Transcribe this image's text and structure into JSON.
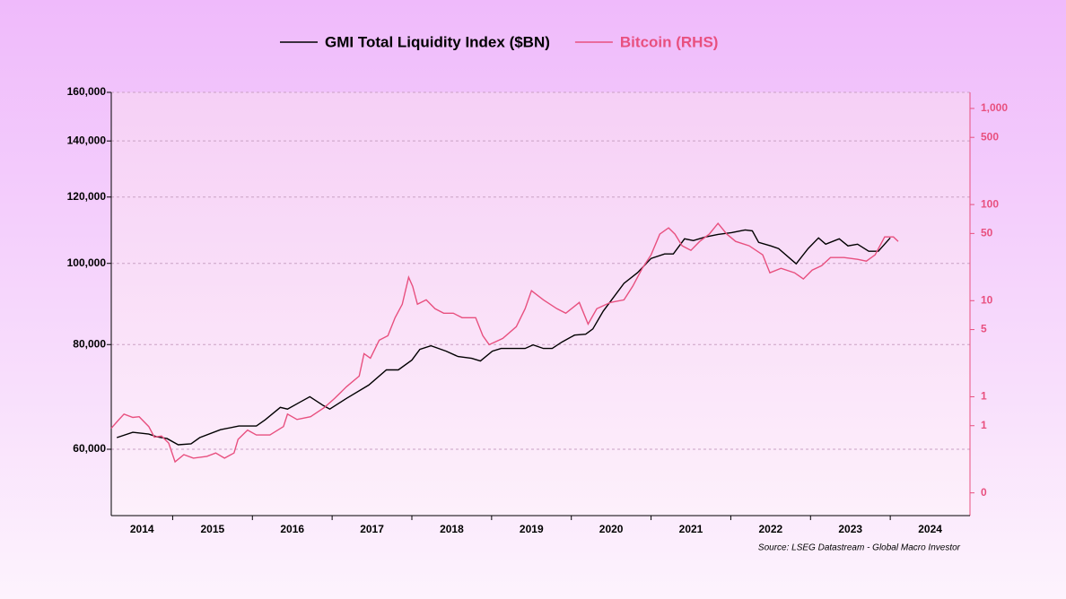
{
  "chart_data": {
    "type": "line",
    "source": "Source: LSEG Datastream - Global Macro Investor",
    "xlim": [
      2014.23,
      2025
    ],
    "xticks": [
      2014,
      2015,
      2016,
      2017,
      2018,
      2019,
      2020,
      2021,
      2022,
      2023,
      2024
    ],
    "ylim": [
      50000,
      160000
    ],
    "log_y": true,
    "yticks": [
      {
        "value": 60000,
        "label": "60,000"
      },
      {
        "value": 80000,
        "label": "80,000"
      },
      {
        "value": 100000,
        "label": "100,000"
      },
      {
        "value": 120000,
        "label": "120,000"
      },
      {
        "value": 140000,
        "label": "140,000"
      },
      {
        "value": 160000,
        "label": "160,000"
      }
    ],
    "y2lim": [
      0.058,
      1470
    ],
    "log_y2": true,
    "y2ticks": [
      {
        "value": 0.1,
        "label": "0"
      },
      {
        "value": 0.5,
        "label": "1"
      },
      1,
      5,
      10,
      50,
      100,
      500,
      {
        "value": 1000,
        "label": "1,000"
      }
    ],
    "grid": true,
    "legend": "top",
    "series": [
      {
        "name": "GMI Total Liquidity Index ($BN)",
        "color": "#000000",
        "x": [
          2014.3,
          2014.5,
          2014.7,
          2014.8,
          2014.93,
          2015.07,
          2015.23,
          2015.34,
          2015.6,
          2015.83,
          2016.05,
          2016.16,
          2016.35,
          2016.44,
          2016.6,
          2016.72,
          2016.89,
          2016.97,
          2017.18,
          2017.46,
          2017.68,
          2017.83,
          2018.0,
          2018.1,
          2018.24,
          2018.43,
          2018.58,
          2018.75,
          2018.86,
          2019.01,
          2019.12,
          2019.42,
          2019.52,
          2019.65,
          2019.76,
          2019.88,
          2020.04,
          2020.18,
          2020.27,
          2020.4,
          2020.66,
          2020.83,
          2021.0,
          2021.17,
          2021.28,
          2021.42,
          2021.53,
          2021.68,
          2021.84,
          2022.01,
          2022.18,
          2022.27,
          2022.35,
          2022.5,
          2022.6,
          2022.82,
          2022.97,
          2023.1,
          2023.19,
          2023.36,
          2023.47,
          2023.59,
          2023.73,
          2023.85,
          2024.0
        ],
        "values": [
          61950,
          62860,
          62550,
          62100,
          61790,
          60740,
          60890,
          61950,
          63320,
          63950,
          63950,
          65050,
          67320,
          67000,
          68320,
          69330,
          67660,
          67000,
          69000,
          71580,
          74620,
          74620,
          76660,
          78950,
          79730,
          78570,
          77420,
          77040,
          76470,
          78570,
          79150,
          79150,
          79930,
          79150,
          79150,
          80520,
          82110,
          82310,
          83530,
          87720,
          94660,
          97480,
          101370,
          102620,
          102620,
          106990,
          106460,
          107510,
          108300,
          108840,
          109640,
          109370,
          105950,
          104920,
          104150,
          99890,
          104150,
          107250,
          105430,
          106990,
          104920,
          105430,
          103390,
          103390,
          107250
        ]
      },
      {
        "name": "Bitcoin (RHS)",
        "color": "#e8507f",
        "axis": "y2",
        "x": [
          2014.23,
          2014.31,
          2014.39,
          2014.5,
          2014.58,
          2014.7,
          2014.77,
          2014.86,
          2014.95,
          2015.03,
          2015.14,
          2015.26,
          2015.43,
          2015.54,
          2015.65,
          2015.77,
          2015.82,
          2015.94,
          2016.05,
          2016.22,
          2016.39,
          2016.44,
          2016.56,
          2016.73,
          2016.9,
          2017.03,
          2017.18,
          2017.34,
          2017.4,
          2017.48,
          2017.59,
          2017.7,
          2017.79,
          2017.88,
          2017.96,
          2018.01,
          2018.07,
          2018.18,
          2018.29,
          2018.4,
          2018.52,
          2018.63,
          2018.8,
          2018.89,
          2018.97,
          2019.14,
          2019.31,
          2019.42,
          2019.5,
          2019.65,
          2019.82,
          2019.93,
          2020.1,
          2020.21,
          2020.32,
          2020.49,
          2020.66,
          2020.77,
          2020.89,
          2021.0,
          2021.11,
          2021.22,
          2021.3,
          2021.39,
          2021.5,
          2021.61,
          2021.73,
          2021.84,
          2021.95,
          2022.06,
          2022.23,
          2022.4,
          2022.49,
          2022.63,
          2022.8,
          2022.91,
          2023.02,
          2023.14,
          2023.25,
          2023.42,
          2023.59,
          2023.7,
          2023.81,
          2023.93,
          2024.04,
          2024.1
        ],
        "values": [
          0.47,
          0.56,
          0.66,
          0.61,
          0.62,
          0.49,
          0.38,
          0.39,
          0.33,
          0.21,
          0.25,
          0.23,
          0.24,
          0.26,
          0.23,
          0.26,
          0.36,
          0.45,
          0.4,
          0.4,
          0.49,
          0.66,
          0.58,
          0.62,
          0.77,
          0.96,
          1.27,
          1.64,
          2.81,
          2.52,
          3.88,
          4.32,
          6.64,
          9.18,
          17.5,
          14.1,
          9.18,
          10.2,
          8.24,
          7.4,
          7.4,
          6.64,
          6.64,
          4.32,
          3.48,
          4.05,
          5.36,
          8.24,
          12.7,
          10.2,
          8.24,
          7.4,
          9.58,
          5.71,
          8.24,
          9.58,
          10.2,
          14.1,
          21.7,
          30.0,
          49.2,
          57.2,
          49.2,
          37.2,
          33.4,
          41.4,
          49.2,
          63.7,
          49.2,
          41.4,
          37.2,
          30.0,
          19.5,
          21.7,
          19.5,
          16.8,
          20.8,
          23.1,
          28.1,
          28.1,
          26.9,
          25.8,
          30.0,
          46.1,
          46.1,
          41.4
        ]
      }
    ]
  }
}
